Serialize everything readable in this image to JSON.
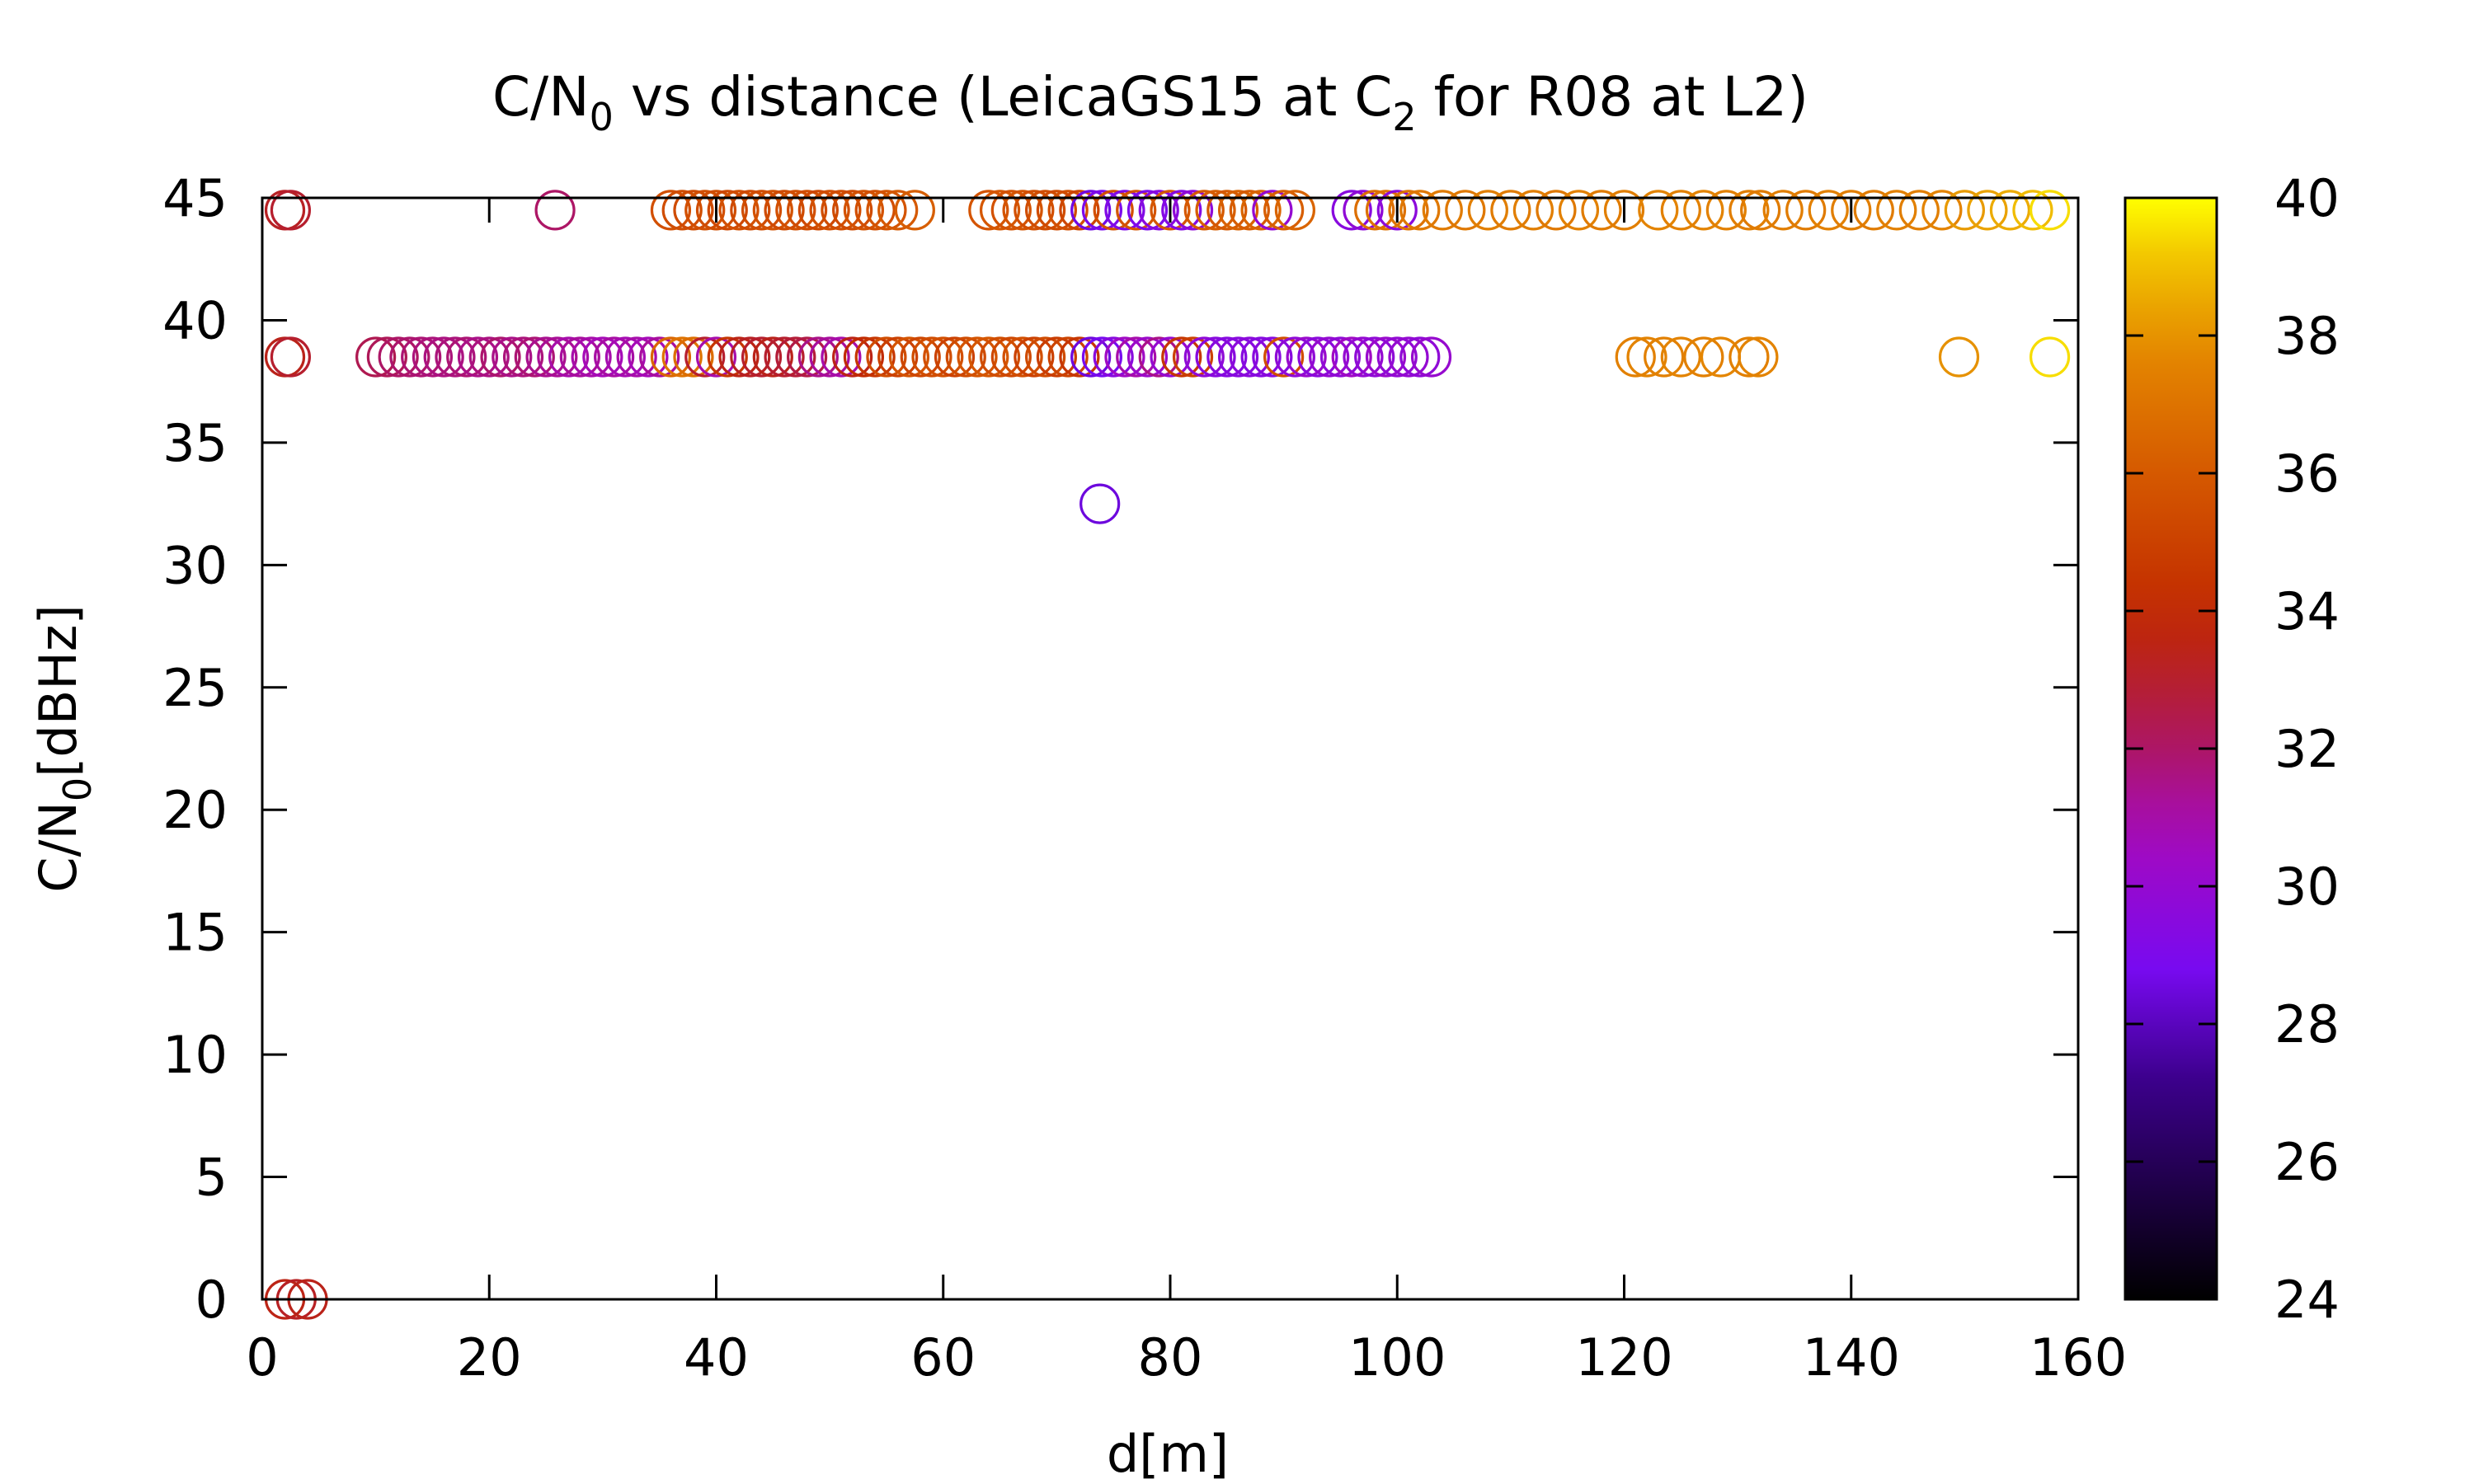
{
  "chart_data": {
    "type": "scatter",
    "title": {
      "part1": "C/N",
      "sub1": "0",
      "part2": " vs distance (LeicaGS15 at C",
      "sub2": "2",
      "part3": " for R08 at L2)"
    },
    "xlabel": "d[m]",
    "ylabel": {
      "part1": "C/N",
      "sub": "0",
      "part2": "[dBHz]"
    },
    "xlim": [
      0,
      160
    ],
    "ylim": [
      0,
      45
    ],
    "xticks": [
      0,
      20,
      40,
      60,
      80,
      100,
      120,
      140,
      160
    ],
    "yticks": [
      0,
      5,
      10,
      15,
      20,
      25,
      30,
      35,
      40,
      45
    ],
    "colorbar": {
      "range": [
        24,
        40
      ],
      "ticks": [
        24,
        26,
        28,
        30,
        32,
        34,
        36,
        38,
        40
      ],
      "palette": "black-blue-violet-red-orange-yellow"
    },
    "marker": "open-circle",
    "grid": false,
    "legend": "none",
    "points": [
      {
        "x": 2.0,
        "y": 44.5,
        "c": 33.2
      },
      {
        "x": 2.5,
        "y": 44.5,
        "c": 33.0
      },
      {
        "x": 2.0,
        "y": 38.5,
        "c": 33.4
      },
      {
        "x": 2.5,
        "y": 38.5,
        "c": 33.0
      },
      {
        "x": 2.0,
        "y": 0,
        "c": 33.5
      },
      {
        "x": 3.0,
        "y": 0,
        "c": 33.2
      },
      {
        "x": 4.0,
        "y": 0,
        "c": 33.4
      },
      {
        "x": 25.8,
        "y": 44.5,
        "c": 32.0
      },
      {
        "x": 10.0,
        "y": 38.5,
        "c": 32.3
      },
      {
        "x": 11.0,
        "y": 38.5,
        "c": 32.2
      },
      {
        "x": 12.0,
        "y": 38.5,
        "c": 32.0
      },
      {
        "x": 13.0,
        "y": 38.5,
        "c": 31.9
      },
      {
        "x": 14.0,
        "y": 38.5,
        "c": 31.8
      },
      {
        "x": 15.0,
        "y": 38.5,
        "c": 31.7
      },
      {
        "x": 16.0,
        "y": 38.5,
        "c": 31.6
      },
      {
        "x": 17.0,
        "y": 38.5,
        "c": 31.7
      },
      {
        "x": 18.0,
        "y": 38.5,
        "c": 31.8
      },
      {
        "x": 19.0,
        "y": 38.5,
        "c": 31.5
      },
      {
        "x": 20.0,
        "y": 38.5,
        "c": 31.6
      },
      {
        "x": 21.0,
        "y": 38.5,
        "c": 31.9
      },
      {
        "x": 22.0,
        "y": 38.5,
        "c": 31.5
      },
      {
        "x": 23.0,
        "y": 38.5,
        "c": 31.7
      },
      {
        "x": 24.0,
        "y": 38.5,
        "c": 31.8
      },
      {
        "x": 25.0,
        "y": 38.5,
        "c": 31.4
      },
      {
        "x": 26.0,
        "y": 38.5,
        "c": 31.3
      },
      {
        "x": 27.0,
        "y": 38.5,
        "c": 31.0
      },
      {
        "x": 28.0,
        "y": 38.5,
        "c": 31.2
      },
      {
        "x": 29.0,
        "y": 38.5,
        "c": 31.0
      },
      {
        "x": 30.0,
        "y": 38.5,
        "c": 30.8
      },
      {
        "x": 31.0,
        "y": 38.5,
        "c": 31.1
      },
      {
        "x": 32.0,
        "y": 38.5,
        "c": 30.9
      },
      {
        "x": 33.0,
        "y": 38.5,
        "c": 31.0
      },
      {
        "x": 34.0,
        "y": 38.5,
        "c": 30.8
      },
      {
        "x": 35.0,
        "y": 38.5,
        "c": 31.2
      },
      {
        "x": 36.0,
        "y": 38.5,
        "c": 36.5
      },
      {
        "x": 37.0,
        "y": 38.5,
        "c": 37.0
      },
      {
        "x": 38.0,
        "y": 38.5,
        "c": 36.8
      },
      {
        "x": 39.0,
        "y": 38.5,
        "c": 33.0
      },
      {
        "x": 40.0,
        "y": 38.5,
        "c": 31.0
      },
      {
        "x": 41.0,
        "y": 38.5,
        "c": 34.5
      },
      {
        "x": 42.0,
        "y": 38.5,
        "c": 33.5
      },
      {
        "x": 43.0,
        "y": 38.5,
        "c": 33.2
      },
      {
        "x": 44.0,
        "y": 38.5,
        "c": 33.0
      },
      {
        "x": 45.0,
        "y": 38.5,
        "c": 33.4
      },
      {
        "x": 46.0,
        "y": 38.5,
        "c": 33.0
      },
      {
        "x": 47.0,
        "y": 38.5,
        "c": 32.8
      },
      {
        "x": 48.0,
        "y": 38.5,
        "c": 32.5
      },
      {
        "x": 49.0,
        "y": 38.5,
        "c": 31.5
      },
      {
        "x": 50.0,
        "y": 38.5,
        "c": 31.2
      },
      {
        "x": 51.0,
        "y": 38.5,
        "c": 31.0
      },
      {
        "x": 52.0,
        "y": 38.5,
        "c": 33.5
      },
      {
        "x": 53.0,
        "y": 38.5,
        "c": 34.0
      },
      {
        "x": 54.0,
        "y": 38.5,
        "c": 34.5
      },
      {
        "x": 55.0,
        "y": 38.5,
        "c": 35.5
      },
      {
        "x": 56.0,
        "y": 38.5,
        "c": 35.0
      },
      {
        "x": 57.0,
        "y": 38.5,
        "c": 35.8
      },
      {
        "x": 58.0,
        "y": 38.5,
        "c": 35.2
      },
      {
        "x": 59.0,
        "y": 38.5,
        "c": 35.5
      },
      {
        "x": 60.0,
        "y": 38.5,
        "c": 35.6
      },
      {
        "x": 61.0,
        "y": 38.5,
        "c": 35.0
      },
      {
        "x": 62.0,
        "y": 38.5,
        "c": 35.4
      },
      {
        "x": 63.0,
        "y": 38.5,
        "c": 35.8
      },
      {
        "x": 64.0,
        "y": 38.5,
        "c": 35.9
      },
      {
        "x": 65.0,
        "y": 38.5,
        "c": 35.5
      },
      {
        "x": 66.0,
        "y": 38.5,
        "c": 35.3
      },
      {
        "x": 67.0,
        "y": 38.5,
        "c": 35.6
      },
      {
        "x": 68.0,
        "y": 38.5,
        "c": 35.0
      },
      {
        "x": 69.0,
        "y": 38.5,
        "c": 35.4
      },
      {
        "x": 70.0,
        "y": 38.5,
        "c": 34.8
      },
      {
        "x": 71.0,
        "y": 38.5,
        "c": 35.1
      },
      {
        "x": 72.0,
        "y": 38.5,
        "c": 34.5
      },
      {
        "x": 73.0,
        "y": 38.5,
        "c": 28.5
      },
      {
        "x": 74.0,
        "y": 38.5,
        "c": 28.8
      },
      {
        "x": 75.0,
        "y": 38.5,
        "c": 29.5
      },
      {
        "x": 76.0,
        "y": 38.5,
        "c": 30.5
      },
      {
        "x": 77.0,
        "y": 38.5,
        "c": 31.0
      },
      {
        "x": 78.0,
        "y": 38.5,
        "c": 30.3
      },
      {
        "x": 79.0,
        "y": 38.5,
        "c": 31.5
      },
      {
        "x": 80.0,
        "y": 38.5,
        "c": 30.0
      },
      {
        "x": 81.0,
        "y": 38.5,
        "c": 34.5
      },
      {
        "x": 82.0,
        "y": 38.5,
        "c": 35.0
      },
      {
        "x": 83.0,
        "y": 38.5,
        "c": 29.8
      },
      {
        "x": 84.0,
        "y": 38.5,
        "c": 29.5
      },
      {
        "x": 85.0,
        "y": 38.5,
        "c": 29.4
      },
      {
        "x": 86.0,
        "y": 38.5,
        "c": 29.5
      },
      {
        "x": 87.0,
        "y": 38.5,
        "c": 29.6
      },
      {
        "x": 88.0,
        "y": 38.5,
        "c": 29.4
      },
      {
        "x": 89.0,
        "y": 38.5,
        "c": 29.5
      },
      {
        "x": 90.0,
        "y": 38.5,
        "c": 35.5
      },
      {
        "x": 91.0,
        "y": 38.5,
        "c": 29.8
      },
      {
        "x": 92.0,
        "y": 38.5,
        "c": 30.2
      },
      {
        "x": 93.0,
        "y": 38.5,
        "c": 29.6
      },
      {
        "x": 94.0,
        "y": 38.5,
        "c": 30.0
      },
      {
        "x": 95.0,
        "y": 38.5,
        "c": 29.8
      },
      {
        "x": 96.0,
        "y": 38.5,
        "c": 30.5
      },
      {
        "x": 97.0,
        "y": 38.5,
        "c": 30.0
      },
      {
        "x": 98.0,
        "y": 38.5,
        "c": 29.8
      },
      {
        "x": 99.0,
        "y": 38.5,
        "c": 30.2
      },
      {
        "x": 100.0,
        "y": 38.5,
        "c": 29.9
      },
      {
        "x": 101.0,
        "y": 38.5,
        "c": 30.0
      },
      {
        "x": 102.0,
        "y": 38.5,
        "c": 29.8
      },
      {
        "x": 103.0,
        "y": 38.5,
        "c": 30.1
      },
      {
        "x": 121.0,
        "y": 38.5,
        "c": 37.5
      },
      {
        "x": 122.0,
        "y": 38.5,
        "c": 37.6
      },
      {
        "x": 123.5,
        "y": 38.5,
        "c": 37.5
      },
      {
        "x": 125.0,
        "y": 38.5,
        "c": 37.6
      },
      {
        "x": 127.0,
        "y": 38.5,
        "c": 37.5
      },
      {
        "x": 128.5,
        "y": 38.5,
        "c": 37.7
      },
      {
        "x": 131.0,
        "y": 38.5,
        "c": 37.5
      },
      {
        "x": 131.8,
        "y": 38.5,
        "c": 37.6
      },
      {
        "x": 149.5,
        "y": 38.5,
        "c": 38.0
      },
      {
        "x": 157.5,
        "y": 38.5,
        "c": 39.5
      },
      {
        "x": 73.8,
        "y": 32.5,
        "c": 28.5
      },
      {
        "x": 36.0,
        "y": 44.5,
        "c": 35.6
      },
      {
        "x": 37.0,
        "y": 44.5,
        "c": 35.5
      },
      {
        "x": 38.0,
        "y": 44.5,
        "c": 35.4
      },
      {
        "x": 39.0,
        "y": 44.5,
        "c": 35.6
      },
      {
        "x": 40.0,
        "y": 44.5,
        "c": 35.5
      },
      {
        "x": 41.0,
        "y": 44.5,
        "c": 35.3
      },
      {
        "x": 42.0,
        "y": 44.5,
        "c": 35.6
      },
      {
        "x": 43.0,
        "y": 44.5,
        "c": 35.4
      },
      {
        "x": 44.0,
        "y": 44.5,
        "c": 35.5
      },
      {
        "x": 45.0,
        "y": 44.5,
        "c": 35.7
      },
      {
        "x": 46.0,
        "y": 44.5,
        "c": 35.4
      },
      {
        "x": 47.0,
        "y": 44.5,
        "c": 35.6
      },
      {
        "x": 48.0,
        "y": 44.5,
        "c": 35.5
      },
      {
        "x": 49.0,
        "y": 44.5,
        "c": 35.3
      },
      {
        "x": 50.0,
        "y": 44.5,
        "c": 35.6
      },
      {
        "x": 51.0,
        "y": 44.5,
        "c": 35.5
      },
      {
        "x": 52.0,
        "y": 44.5,
        "c": 35.4
      },
      {
        "x": 53.0,
        "y": 44.5,
        "c": 35.7
      },
      {
        "x": 54.0,
        "y": 44.5,
        "c": 35.6
      },
      {
        "x": 55.0,
        "y": 44.5,
        "c": 35.8
      },
      {
        "x": 56.0,
        "y": 44.5,
        "c": 36.0
      },
      {
        "x": 57.5,
        "y": 44.5,
        "c": 36.2
      },
      {
        "x": 64.0,
        "y": 44.5,
        "c": 35.8
      },
      {
        "x": 65.0,
        "y": 44.5,
        "c": 35.9
      },
      {
        "x": 66.0,
        "y": 44.5,
        "c": 35.7
      },
      {
        "x": 67.0,
        "y": 44.5,
        "c": 35.8
      },
      {
        "x": 68.0,
        "y": 44.5,
        "c": 35.6
      },
      {
        "x": 69.0,
        "y": 44.5,
        "c": 35.5
      },
      {
        "x": 70.0,
        "y": 44.5,
        "c": 35.4
      },
      {
        "x": 71.0,
        "y": 44.5,
        "c": 35.6
      },
      {
        "x": 72.0,
        "y": 44.5,
        "c": 35.2
      },
      {
        "x": 73.0,
        "y": 44.5,
        "c": 28.6
      },
      {
        "x": 74.0,
        "y": 44.5,
        "c": 29.0
      },
      {
        "x": 75.0,
        "y": 44.5,
        "c": 35.6
      },
      {
        "x": 76.0,
        "y": 44.5,
        "c": 29.2
      },
      {
        "x": 77.0,
        "y": 44.5,
        "c": 35.8
      },
      {
        "x": 78.0,
        "y": 44.5,
        "c": 29.0
      },
      {
        "x": 79.0,
        "y": 44.5,
        "c": 29.5
      },
      {
        "x": 80.0,
        "y": 44.5,
        "c": 35.9
      },
      {
        "x": 81.0,
        "y": 44.5,
        "c": 29.3
      },
      {
        "x": 82.0,
        "y": 44.5,
        "c": 29.8
      },
      {
        "x": 83.0,
        "y": 44.5,
        "c": 36.0
      },
      {
        "x": 84.0,
        "y": 44.5,
        "c": 36.2
      },
      {
        "x": 85.0,
        "y": 44.5,
        "c": 36.0
      },
      {
        "x": 86.0,
        "y": 44.5,
        "c": 36.3
      },
      {
        "x": 87.0,
        "y": 44.5,
        "c": 36.1
      },
      {
        "x": 88.0,
        "y": 44.5,
        "c": 36.4
      },
      {
        "x": 89.0,
        "y": 44.5,
        "c": 30.0
      },
      {
        "x": 90.0,
        "y": 44.5,
        "c": 36.2
      },
      {
        "x": 91.0,
        "y": 44.5,
        "c": 36.4
      },
      {
        "x": 96.0,
        "y": 44.5,
        "c": 29.5
      },
      {
        "x": 97.0,
        "y": 44.5,
        "c": 29.8
      },
      {
        "x": 98.0,
        "y": 44.5,
        "c": 36.8
      },
      {
        "x": 99.0,
        "y": 44.5,
        "c": 36.9
      },
      {
        "x": 100.0,
        "y": 44.5,
        "c": 29.6
      },
      {
        "x": 101.0,
        "y": 44.5,
        "c": 37.0
      },
      {
        "x": 102.0,
        "y": 44.5,
        "c": 37.2
      },
      {
        "x": 104.0,
        "y": 44.5,
        "c": 37.3
      },
      {
        "x": 106.0,
        "y": 44.5,
        "c": 37.2
      },
      {
        "x": 108.0,
        "y": 44.5,
        "c": 37.4
      },
      {
        "x": 110.0,
        "y": 44.5,
        "c": 37.3
      },
      {
        "x": 112.0,
        "y": 44.5,
        "c": 37.4
      },
      {
        "x": 114.0,
        "y": 44.5,
        "c": 37.2
      },
      {
        "x": 116.0,
        "y": 44.5,
        "c": 37.5
      },
      {
        "x": 118.0,
        "y": 44.5,
        "c": 37.3
      },
      {
        "x": 120.0,
        "y": 44.5,
        "c": 37.4
      },
      {
        "x": 123.0,
        "y": 44.5,
        "c": 37.6
      },
      {
        "x": 125.0,
        "y": 44.5,
        "c": 37.5
      },
      {
        "x": 127.0,
        "y": 44.5,
        "c": 37.6
      },
      {
        "x": 129.0,
        "y": 44.5,
        "c": 37.5
      },
      {
        "x": 131.0,
        "y": 44.5,
        "c": 37.4
      },
      {
        "x": 132.0,
        "y": 44.5,
        "c": 37.3
      },
      {
        "x": 134.0,
        "y": 44.5,
        "c": 37.4
      },
      {
        "x": 136.0,
        "y": 44.5,
        "c": 37.3
      },
      {
        "x": 138.0,
        "y": 44.5,
        "c": 37.5
      },
      {
        "x": 140.0,
        "y": 44.5,
        "c": 37.4
      },
      {
        "x": 142.0,
        "y": 44.5,
        "c": 37.3
      },
      {
        "x": 144.0,
        "y": 44.5,
        "c": 37.5
      },
      {
        "x": 146.0,
        "y": 44.5,
        "c": 37.4
      },
      {
        "x": 148.0,
        "y": 44.5,
        "c": 37.6
      },
      {
        "x": 150.0,
        "y": 44.5,
        "c": 38.2
      },
      {
        "x": 152.0,
        "y": 44.5,
        "c": 38.4
      },
      {
        "x": 154.0,
        "y": 44.5,
        "c": 38.6
      },
      {
        "x": 156.0,
        "y": 44.5,
        "c": 39.0
      },
      {
        "x": 157.5,
        "y": 44.5,
        "c": 39.5
      }
    ]
  }
}
